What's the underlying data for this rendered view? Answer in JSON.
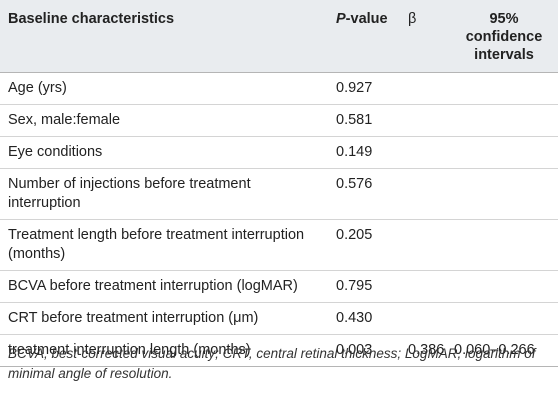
{
  "table": {
    "headers": {
      "characteristics": "Baseline characteristics",
      "p_italic": "P",
      "p_rest": "-value",
      "beta": "β",
      "ci": "95% confidence intervals"
    },
    "rows": [
      {
        "label": "Age (yrs)",
        "p": "0.927",
        "beta": "",
        "ci": ""
      },
      {
        "label": "Sex, male:female",
        "p": "0.581",
        "beta": "",
        "ci": ""
      },
      {
        "label": "Eye conditions",
        "p": "0.149",
        "beta": "",
        "ci": ""
      },
      {
        "label": "Number of injections before treatment interruption",
        "p": "0.576",
        "beta": "",
        "ci": ""
      },
      {
        "label": "Treatment length before treatment interruption (months)",
        "p": "0.205",
        "beta": "",
        "ci": ""
      },
      {
        "label": "BCVA before treatment interruption (logMAR)",
        "p": "0.795",
        "beta": "",
        "ci": ""
      },
      {
        "label": "CRT before treatment interruption (μm)",
        "p": "0.430",
        "beta": "",
        "ci": ""
      },
      {
        "label": "treatment interruption length (months)",
        "p": "0.003",
        "beta": "0.386",
        "ci": "0.060–0.266"
      }
    ]
  },
  "footnote": "BCVA, best-corrected visual acuity; CRT, central retinal thickness; LogMAR, logarithm of minimal angle of resolution."
}
